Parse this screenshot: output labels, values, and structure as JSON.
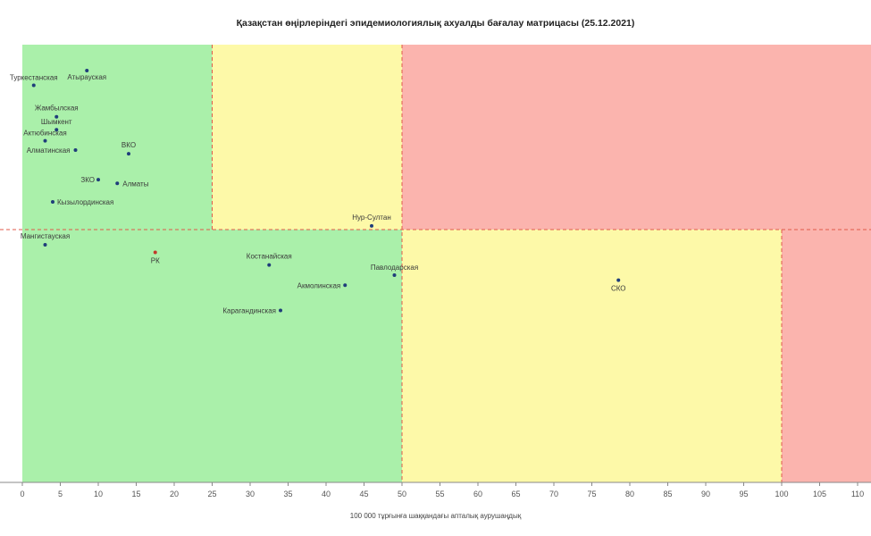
{
  "chart_data": {
    "type": "scatter",
    "title": "Қазақстан өңірлеріндегі эпидемиологиялық ахуалды бағалау матрицасы  (25.12.2021)",
    "xlabel": "100 000 тұрғынға шаққандағы апталық аурушаңдық",
    "ylabel": "",
    "xlim": [
      0,
      112
    ],
    "xticks": [
      0,
      5,
      10,
      15,
      20,
      25,
      30,
      35,
      40,
      45,
      50,
      55,
      60,
      65,
      70,
      75,
      80,
      85,
      90,
      95,
      100,
      105,
      110
    ],
    "grid": false,
    "zones": [
      {
        "color": "#aaf0aa",
        "x": [
          0,
          25
        ],
        "row": "top"
      },
      {
        "color": "#fdf9a8",
        "x": [
          25,
          50
        ],
        "row": "top"
      },
      {
        "color": "#fbb4ae",
        "x": [
          50,
          112
        ],
        "row": "top"
      },
      {
        "color": "#aaf0aa",
        "x": [
          0,
          50
        ],
        "row": "bottom"
      },
      {
        "color": "#fdf9a8",
        "x": [
          50,
          100
        ],
        "row": "bottom"
      },
      {
        "color": "#fbb4ae",
        "x": [
          100,
          112
        ],
        "row": "bottom"
      }
    ],
    "threshold_color": "#e05a4a",
    "point_color": "#1f3d7a",
    "highlight_color": "#c0392b",
    "points": [
      {
        "label": "Туркестанская",
        "x": 1.5,
        "row": "top",
        "level": 0.78
      },
      {
        "label": "Атырауская",
        "x": 8.5,
        "row": "top",
        "level": 0.86
      },
      {
        "label": "Жамбылская",
        "x": 4.5,
        "row": "top",
        "level": 0.61
      },
      {
        "label": "Шымкент",
        "x": 4.5,
        "row": "top",
        "level": 0.54
      },
      {
        "label": "Актюбинская",
        "x": 3.0,
        "row": "top",
        "level": 0.48
      },
      {
        "label": "Алматинская",
        "x": 7.0,
        "row": "top",
        "level": 0.43
      },
      {
        "label": "ВКО",
        "x": 14.0,
        "row": "top",
        "level": 0.41
      },
      {
        "label": "ЗКО",
        "x": 10.0,
        "row": "top",
        "level": 0.27
      },
      {
        "label": "Алматы",
        "x": 12.5,
        "row": "top",
        "level": 0.25
      },
      {
        "label": "Кызылординская",
        "x": 4.0,
        "row": "top",
        "level": 0.15
      },
      {
        "label": "Нур-Султан",
        "x": 46.0,
        "row": "top",
        "level": 0.02
      },
      {
        "label": "Мангистауская",
        "x": 3.0,
        "row": "bottom",
        "level": 0.94
      },
      {
        "label": "РК",
        "x": 17.5,
        "row": "bottom",
        "level": 0.91,
        "highlight": true
      },
      {
        "label": "Костанайская",
        "x": 32.5,
        "row": "bottom",
        "level": 0.86
      },
      {
        "label": "Павлодарская",
        "x": 49.0,
        "row": "bottom",
        "level": 0.82
      },
      {
        "label": "СКО",
        "x": 78.5,
        "row": "bottom",
        "level": 0.8
      },
      {
        "label": "Акмолинская",
        "x": 42.5,
        "row": "bottom",
        "level": 0.78
      },
      {
        "label": "Карагандинская",
        "x": 34.0,
        "row": "bottom",
        "level": 0.68
      }
    ]
  }
}
